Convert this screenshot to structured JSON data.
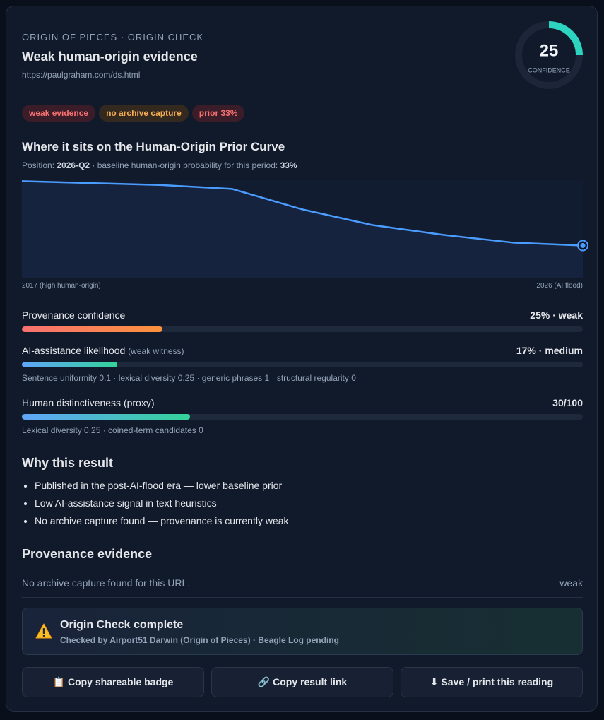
{
  "header": {
    "eyebrow": "ORIGIN OF PIECES · ORIGIN CHECK",
    "title": "Weak human-origin evidence",
    "url": "https://paulgraham.com/ds.html"
  },
  "gauge": {
    "value": 25,
    "label": "CONFIDENCE",
    "color": "#2dd4bf"
  },
  "tags": [
    {
      "text": "weak evidence",
      "color": "#f87171",
      "background": "#3a1d29"
    },
    {
      "text": "no archive capture",
      "color": "#f6ad55",
      "background": "#33291f"
    },
    {
      "text": "prior 33%",
      "color": "#f87171",
      "background": "#3a1d29"
    }
  ],
  "curve": {
    "title": "Where it sits on the Human-Origin Prior Curve",
    "position_label": "Position:",
    "period": "2026-Q2",
    "baseline_label": "· baseline human-origin probability for this period:",
    "baseline": "33%",
    "values": [
      99,
      97,
      95,
      91,
      70,
      54,
      44,
      36,
      33
    ],
    "ylim": [
      0,
      100
    ],
    "color": "#4a9cff",
    "start_label": "2017 (high human-origin)",
    "end_label": "2026 (AI flood)"
  },
  "metrics": [
    {
      "label": "Provenance confidence",
      "value": 25,
      "value_label": "25% · weak",
      "colors": [
        "#f87171",
        "#fb923c"
      ]
    },
    {
      "label": "AI-assistance likelihood",
      "note": "(weak witness)",
      "value": 17,
      "value_label": "17% · medium",
      "colors": [
        "#60a5fa",
        "#34d399"
      ],
      "detail": "Sentence uniformity 0.1 · lexical diversity 0.25 · generic phrases 1 · structural regularity 0"
    },
    {
      "label": "Human distinctiveness (proxy)",
      "value": 30,
      "value_label": "30/100",
      "colors": [
        "#60a5fa",
        "#34d399"
      ],
      "detail": "Lexical diversity 0.25 · coined-term candidates 0"
    }
  ],
  "why": {
    "title": "Why this result",
    "items": [
      "Published in the post-AI-flood era — lower baseline prior",
      "Low AI-assistance signal in text heuristics",
      "No archive capture found — provenance is currently weak"
    ]
  },
  "evidence": {
    "title": "Provenance evidence",
    "text": "No archive capture found for this URL.",
    "status": "weak"
  },
  "notice": {
    "title": "Origin Check complete",
    "text": "Checked by Airport51 Darwin (Origin of Pieces) · Beagle Log pending"
  },
  "buttons": [
    "📋 Copy shareable badge",
    "🔗 Copy result link",
    "⬇ Save / print this reading"
  ]
}
